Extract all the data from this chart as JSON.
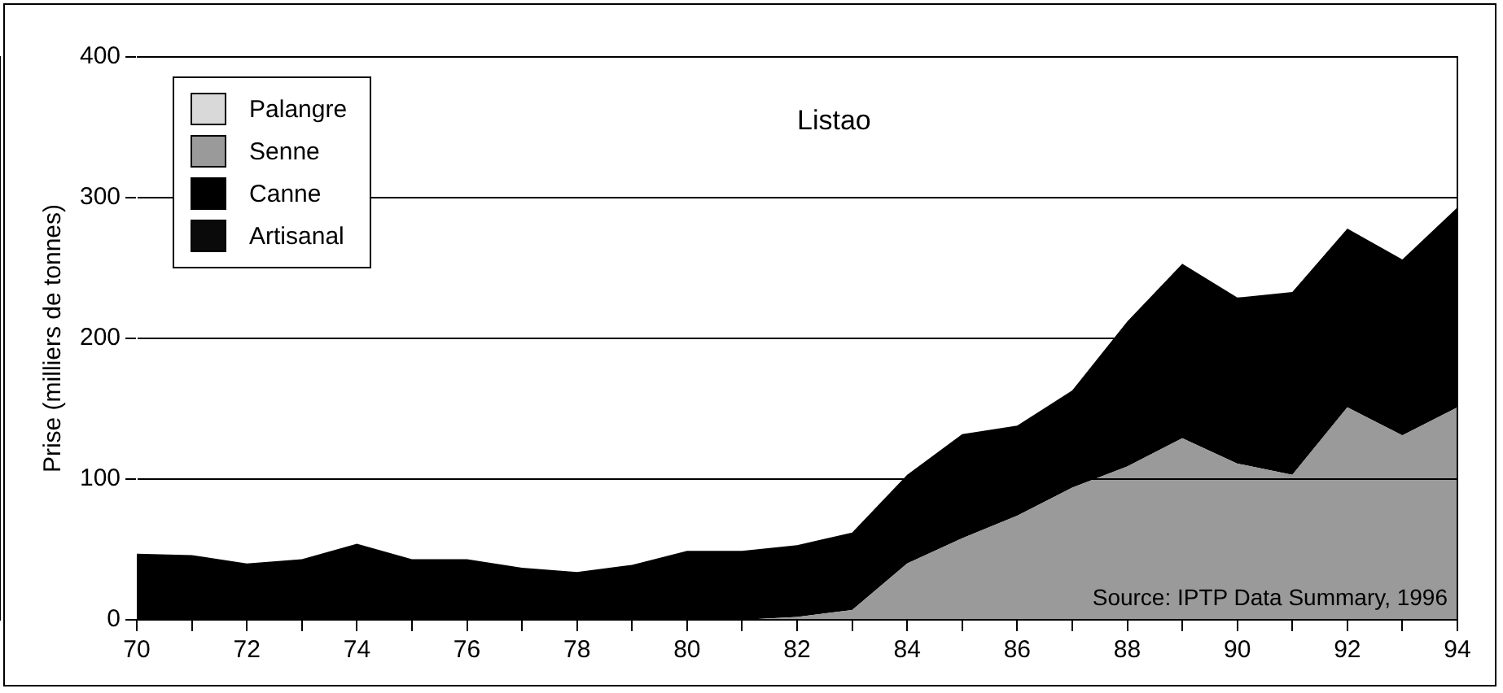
{
  "chart_data": {
    "type": "area",
    "stacked": true,
    "title": "Listao",
    "ylabel": "Prise (milliers de tonnes)",
    "x": [
      70,
      71,
      72,
      73,
      74,
      75,
      76,
      77,
      78,
      79,
      80,
      81,
      82,
      83,
      84,
      85,
      86,
      87,
      88,
      89,
      90,
      91,
      92,
      93,
      94
    ],
    "series": [
      {
        "name": "Palangre",
        "color": "#d9d9d9",
        "values": [
          null,
          null,
          null,
          null,
          null,
          null,
          null,
          null,
          null,
          null,
          null,
          null,
          null,
          null,
          null,
          null,
          null,
          null,
          null,
          null,
          null,
          null,
          null,
          null,
          null
        ]
      },
      {
        "name": "Senne",
        "color": "#9a9a9a",
        "values": [
          0,
          0,
          0,
          0,
          0,
          0,
          0,
          0,
          0,
          0,
          0,
          0,
          2,
          7,
          40,
          58,
          74,
          94,
          109,
          129,
          111,
          103,
          151,
          131,
          151
        ]
      },
      {
        "name": "Canne",
        "color": "#000000",
        "values": [
          47,
          46,
          40,
          43,
          54,
          43,
          43,
          37,
          34,
          39,
          49,
          49,
          51,
          55,
          63,
          74,
          64,
          69,
          103,
          124,
          118,
          130,
          127,
          125,
          142
        ]
      },
      {
        "name": "Artisanal",
        "color": "#0a0a0a",
        "values": [
          null,
          null,
          null,
          null,
          null,
          null,
          null,
          null,
          null,
          null,
          null,
          null,
          null,
          null,
          null,
          null,
          null,
          null,
          null,
          null,
          null,
          null,
          null,
          null,
          null
        ]
      }
    ],
    "xlim": [
      70,
      94
    ],
    "xticks": [
      70,
      {
        "value": 71,
        "label": null
      },
      72,
      {
        "value": 73,
        "label": null
      },
      74,
      {
        "value": 75,
        "label": null
      },
      76,
      {
        "value": 77,
        "label": null
      },
      78,
      {
        "value": 79,
        "label": null
      },
      80,
      {
        "value": 81,
        "label": null
      },
      82,
      {
        "value": 83,
        "label": null
      },
      84,
      {
        "value": 85,
        "label": null
      },
      86,
      {
        "value": 87,
        "label": null
      },
      88,
      {
        "value": 89,
        "label": null
      },
      90,
      {
        "value": 91,
        "label": null
      },
      92,
      {
        "value": 93,
        "label": null
      },
      94
    ],
    "ylim": [
      0,
      400
    ],
    "yticks": [
      0,
      100,
      200,
      300,
      400
    ],
    "grid": "y",
    "legend": "top left",
    "marker": "none",
    "annotations": [
      "Source: IPTP Data Summary, 1996"
    ]
  }
}
